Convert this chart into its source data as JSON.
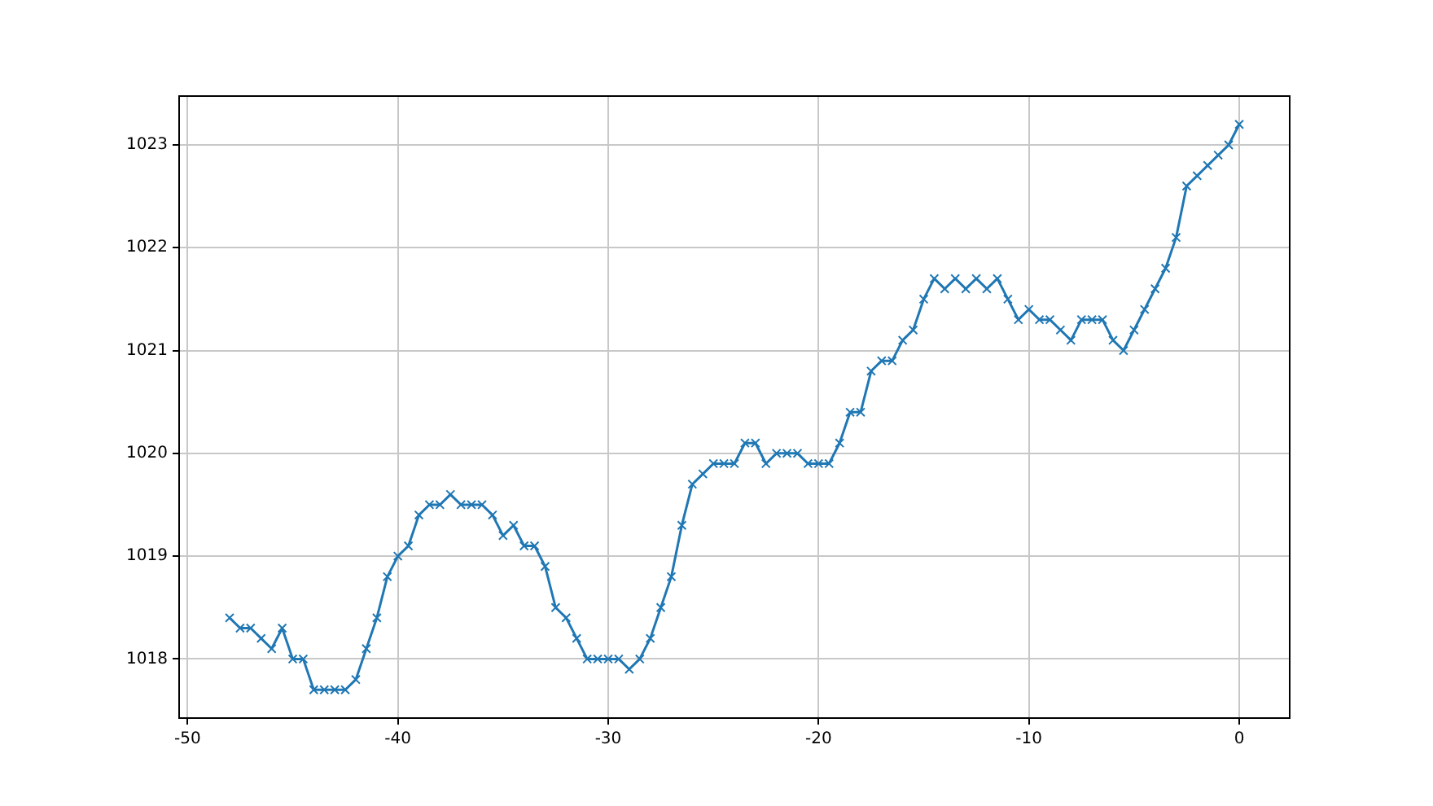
{
  "chart_data": {
    "type": "line",
    "marker": "cross",
    "line_style": "solid",
    "grid": true,
    "legend": false,
    "xlim": [
      -50.4,
      2.4
    ],
    "xticks": [
      -50,
      -40,
      -30,
      -20,
      -10,
      0
    ],
    "ylim": [
      1017.425,
      1023.475
    ],
    "yticks": [
      1018,
      1019,
      1020,
      1021,
      1022,
      1023
    ],
    "series": [
      {
        "color": "#1f77b4",
        "x": [
          -48,
          -47.5,
          -47,
          -46.5,
          -46,
          -45.5,
          -45,
          -44.5,
          -44,
          -43.5,
          -43,
          -42.5,
          -42,
          -41.5,
          -41,
          -40.5,
          -40,
          -39.5,
          -39,
          -38.5,
          -38,
          -37.5,
          -37,
          -36.5,
          -36,
          -35.5,
          -35,
          -34.5,
          -34,
          -33.5,
          -33,
          -32.5,
          -32,
          -31.5,
          -31,
          -30.5,
          -30,
          -29.5,
          -29,
          -28.5,
          -28,
          -27.5,
          -27,
          -26.5,
          -26,
          -25.5,
          -25,
          -24.5,
          -24,
          -23.5,
          -23,
          -22.5,
          -22,
          -21.5,
          -21,
          -20.5,
          -20,
          -19.5,
          -19,
          -18.5,
          -18,
          -17.5,
          -17,
          -16.5,
          -16,
          -15.5,
          -15,
          -14.5,
          -14,
          -13.5,
          -13,
          -12.5,
          -12,
          -11.5,
          -11,
          -10.5,
          -10,
          -9.5,
          -9,
          -8.5,
          -8,
          -7.5,
          -7,
          -6.5,
          -6,
          -5.5,
          -5,
          -4.5,
          -4,
          -3.5,
          -3,
          -2.5,
          -2,
          -1.5,
          -1,
          -0.5,
          0
        ],
        "values": [
          1018.4,
          1018.3,
          1018.3,
          1018.2,
          1018.1,
          1018.3,
          1018.0,
          1018.0,
          1017.7,
          1017.7,
          1017.7,
          1017.7,
          1017.8,
          1018.1,
          1018.4,
          1018.8,
          1019.0,
          1019.1,
          1019.4,
          1019.5,
          1019.5,
          1019.6,
          1019.5,
          1019.5,
          1019.5,
          1019.4,
          1019.2,
          1019.3,
          1019.1,
          1019.1,
          1018.9,
          1018.5,
          1018.4,
          1018.2,
          1018.0,
          1018.0,
          1018.0,
          1018.0,
          1017.9,
          1018.0,
          1018.2,
          1018.5,
          1018.8,
          1019.3,
          1019.7,
          1019.8,
          1019.9,
          1019.9,
          1019.9,
          1020.1,
          1020.1,
          1019.9,
          1020.0,
          1020.0,
          1020.0,
          1019.9,
          1019.9,
          1019.9,
          1020.1,
          1020.4,
          1020.4,
          1020.8,
          1020.9,
          1020.9,
          1021.1,
          1021.2,
          1021.5,
          1021.7,
          1021.6,
          1021.7,
          1021.6,
          1021.7,
          1021.6,
          1021.7,
          1021.5,
          1021.3,
          1021.4,
          1021.3,
          1021.3,
          1021.2,
          1021.1,
          1021.3,
          1021.3,
          1021.3,
          1021.1,
          1021.0,
          1021.2,
          1021.4,
          1021.6,
          1021.8,
          1022.1,
          1022.6,
          1022.7,
          1022.8,
          1022.9,
          1023.0,
          1023.2
        ]
      }
    ]
  }
}
